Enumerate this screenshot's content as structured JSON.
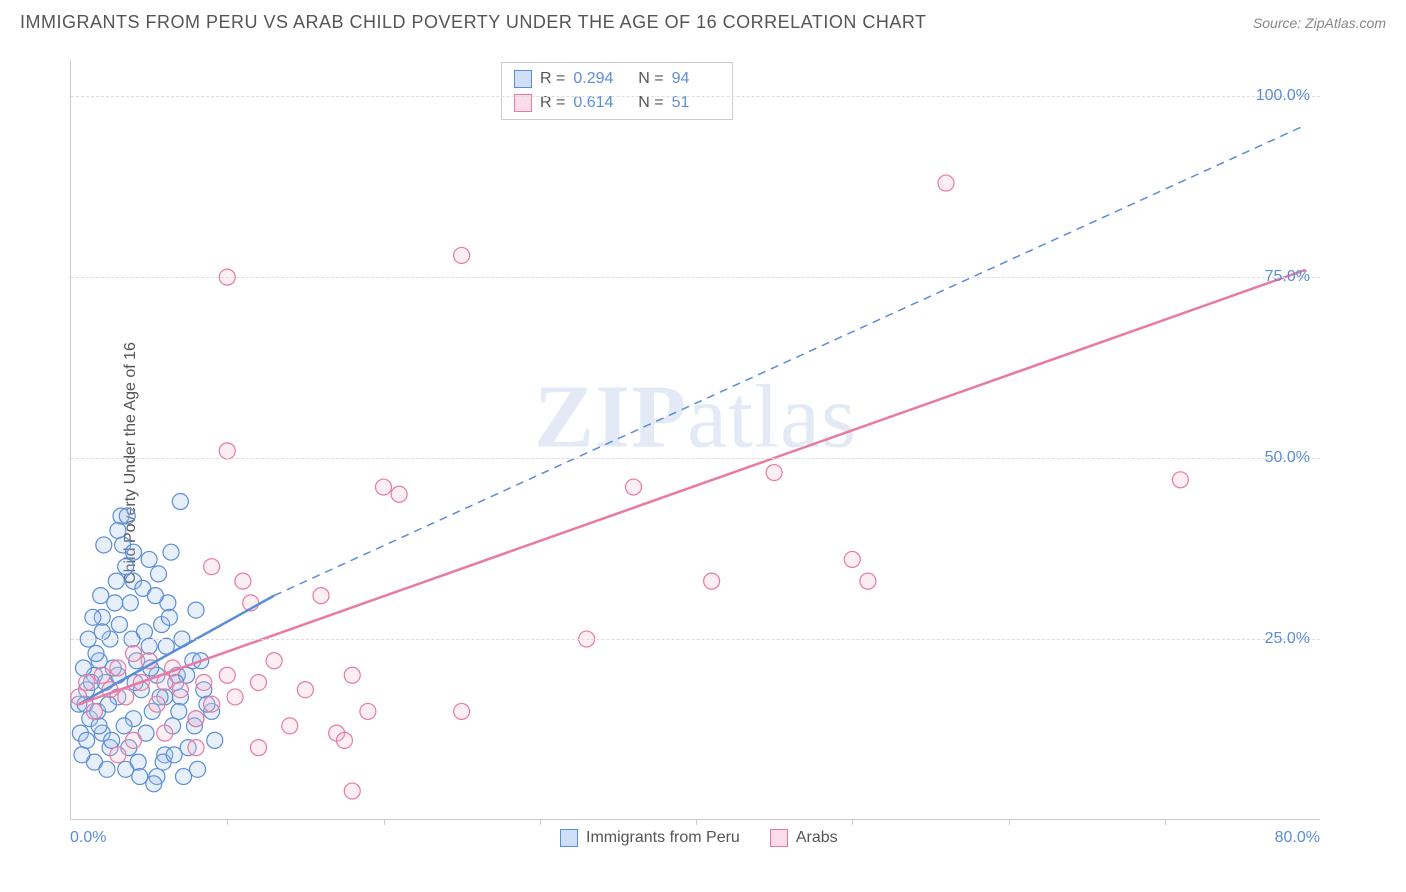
{
  "header": {
    "title": "IMMIGRANTS FROM PERU VS ARAB CHILD POVERTY UNDER THE AGE OF 16 CORRELATION CHART",
    "source": "Source: ZipAtlas.com"
  },
  "chart": {
    "type": "scatter",
    "ylabel": "Child Poverty Under the Age of 16",
    "watermark": "ZIPatlas",
    "background_color": "#ffffff",
    "grid_color": "#dddddd",
    "axis_color": "#cccccc",
    "tick_label_color": "#5b8dd6",
    "label_color": "#555555",
    "title_fontsize": 18,
    "label_fontsize": 16,
    "xlim": [
      0,
      80
    ],
    "ylim": [
      0,
      105
    ],
    "yticks": [
      25,
      50,
      75,
      100
    ],
    "ytick_labels": [
      "25.0%",
      "50.0%",
      "75.0%",
      "100.0%"
    ],
    "xtick_positions": [
      10,
      20,
      30,
      40,
      50,
      60,
      70
    ],
    "xtick_origin_label": "0.0%",
    "xtick_max_label": "80.0%",
    "marker_radius": 8,
    "marker_fill_opacity": 0.28,
    "marker_stroke_width": 1.2,
    "series": [
      {
        "name": "Immigrants from Peru",
        "color_stroke": "#5b8dd6",
        "color_fill": "#a9c5ec",
        "swatch_border": "#5b8dd6",
        "swatch_fill": "#cfe0f6",
        "R": "0.294",
        "N": "94",
        "regression": {
          "solid": {
            "x1": 0.5,
            "y1": 16,
            "x2": 13,
            "y2": 31
          },
          "dashed": {
            "x1": 13,
            "y1": 31,
            "x2": 79,
            "y2": 96
          },
          "line_width": 2.5,
          "dash": "8 6"
        },
        "points": [
          [
            0.5,
            16
          ],
          [
            1,
            18
          ],
          [
            1.2,
            14
          ],
          [
            1.5,
            20
          ],
          [
            1.5,
            8
          ],
          [
            1.8,
            22
          ],
          [
            2,
            28
          ],
          [
            2,
            12
          ],
          [
            2.2,
            19
          ],
          [
            2.5,
            25
          ],
          [
            2.5,
            10
          ],
          [
            2.8,
            30
          ],
          [
            3,
            40
          ],
          [
            3,
            17
          ],
          [
            3.2,
            42
          ],
          [
            3.5,
            35
          ],
          [
            3.5,
            7
          ],
          [
            3.8,
            30
          ],
          [
            4,
            33
          ],
          [
            4,
            14
          ],
          [
            4.2,
            22
          ],
          [
            4.5,
            18
          ],
          [
            4.8,
            12
          ],
          [
            5,
            24
          ],
          [
            5,
            36
          ],
          [
            5.2,
            15
          ],
          [
            5.5,
            20
          ],
          [
            5.5,
            6
          ],
          [
            5.8,
            27
          ],
          [
            6,
            17
          ],
          [
            6,
            9
          ],
          [
            6.2,
            30
          ],
          [
            6.5,
            13
          ],
          [
            6.8,
            20
          ],
          [
            7,
            44
          ],
          [
            7,
            17
          ],
          [
            7.5,
            10
          ],
          [
            7.8,
            22
          ],
          [
            8,
            29
          ],
          [
            8,
            14
          ],
          [
            8.5,
            18
          ],
          [
            3.3,
            38
          ],
          [
            1.9,
            31
          ],
          [
            1.4,
            28
          ],
          [
            3.6,
            42
          ],
          [
            2.9,
            33
          ],
          [
            0.8,
            21
          ],
          [
            1.1,
            25
          ],
          [
            6.4,
            37
          ],
          [
            4.6,
            32
          ],
          [
            2.1,
            38
          ],
          [
            3.0,
            20
          ],
          [
            3.4,
            13
          ],
          [
            1.7,
            15
          ],
          [
            2.6,
            11
          ],
          [
            5.9,
            8
          ],
          [
            6.6,
            9
          ],
          [
            7.2,
            6
          ],
          [
            9,
            15
          ],
          [
            4.3,
            8
          ],
          [
            0.6,
            12
          ],
          [
            0.9,
            16
          ],
          [
            1.3,
            19
          ],
          [
            1.6,
            23
          ],
          [
            2.4,
            16
          ],
          [
            2.7,
            21
          ],
          [
            3.1,
            27
          ],
          [
            3.9,
            25
          ],
          [
            4.1,
            19
          ],
          [
            4.7,
            26
          ],
          [
            5.1,
            21
          ],
          [
            5.4,
            31
          ],
          [
            5.7,
            17
          ],
          [
            6.1,
            24
          ],
          [
            6.3,
            28
          ],
          [
            6.9,
            15
          ],
          [
            7.4,
            20
          ],
          [
            7.9,
            13
          ],
          [
            8.3,
            22
          ],
          [
            8.7,
            16
          ],
          [
            9.2,
            11
          ],
          [
            2.3,
            7
          ],
          [
            3.7,
            10
          ],
          [
            4.4,
            6
          ],
          [
            5.3,
            5
          ],
          [
            1.0,
            11
          ],
          [
            1.8,
            13
          ],
          [
            2.0,
            26
          ],
          [
            0.7,
            9
          ],
          [
            4.0,
            37
          ],
          [
            5.6,
            34
          ],
          [
            6.7,
            19
          ],
          [
            7.1,
            25
          ],
          [
            8.1,
            7
          ]
        ]
      },
      {
        "name": "Arabs",
        "color_stroke": "#e77ba2",
        "color_fill": "#f5c1d3",
        "swatch_border": "#e77ba2",
        "swatch_fill": "#fadde8",
        "R": "0.614",
        "N": "51",
        "regression": {
          "solid": {
            "x1": 0.5,
            "y1": 16,
            "x2": 79,
            "y2": 76
          },
          "dashed": null,
          "line_width": 2.5
        },
        "points": [
          [
            0.5,
            17
          ],
          [
            1,
            19
          ],
          [
            1.5,
            15
          ],
          [
            2,
            20
          ],
          [
            2.5,
            18
          ],
          [
            3,
            21
          ],
          [
            3.5,
            17
          ],
          [
            4,
            23
          ],
          [
            4.5,
            19
          ],
          [
            5,
            22
          ],
          [
            5.5,
            16
          ],
          [
            6,
            19
          ],
          [
            6.5,
            21
          ],
          [
            7,
            18
          ],
          [
            8,
            14
          ],
          [
            8.5,
            19
          ],
          [
            9,
            16
          ],
          [
            10,
            20
          ],
          [
            10.5,
            17
          ],
          [
            11,
            33
          ],
          [
            9,
            35
          ],
          [
            11.5,
            30
          ],
          [
            12,
            19
          ],
          [
            13,
            22
          ],
          [
            14,
            13
          ],
          [
            15,
            18
          ],
          [
            16,
            31
          ],
          [
            17,
            12
          ],
          [
            17.5,
            11
          ],
          [
            18,
            20
          ],
          [
            19,
            15
          ],
          [
            20,
            46
          ],
          [
            21,
            45
          ],
          [
            10,
            75
          ],
          [
            10,
            51
          ],
          [
            25,
            78
          ],
          [
            33,
            25
          ],
          [
            36,
            46
          ],
          [
            41,
            33
          ],
          [
            45,
            48
          ],
          [
            50,
            36
          ],
          [
            51,
            33
          ],
          [
            56,
            88
          ],
          [
            71,
            47
          ],
          [
            25,
            15
          ],
          [
            18,
            4
          ],
          [
            8,
            10
          ],
          [
            6,
            12
          ],
          [
            4,
            11
          ],
          [
            3,
            9
          ],
          [
            12,
            10
          ]
        ]
      }
    ],
    "legend_bottom": [
      {
        "label": "Immigrants from Peru",
        "swatch_fill": "#cfe0f6",
        "swatch_border": "#5b8dd6"
      },
      {
        "label": "Arabs",
        "swatch_fill": "#fadde8",
        "swatch_border": "#e77ba2"
      }
    ]
  }
}
